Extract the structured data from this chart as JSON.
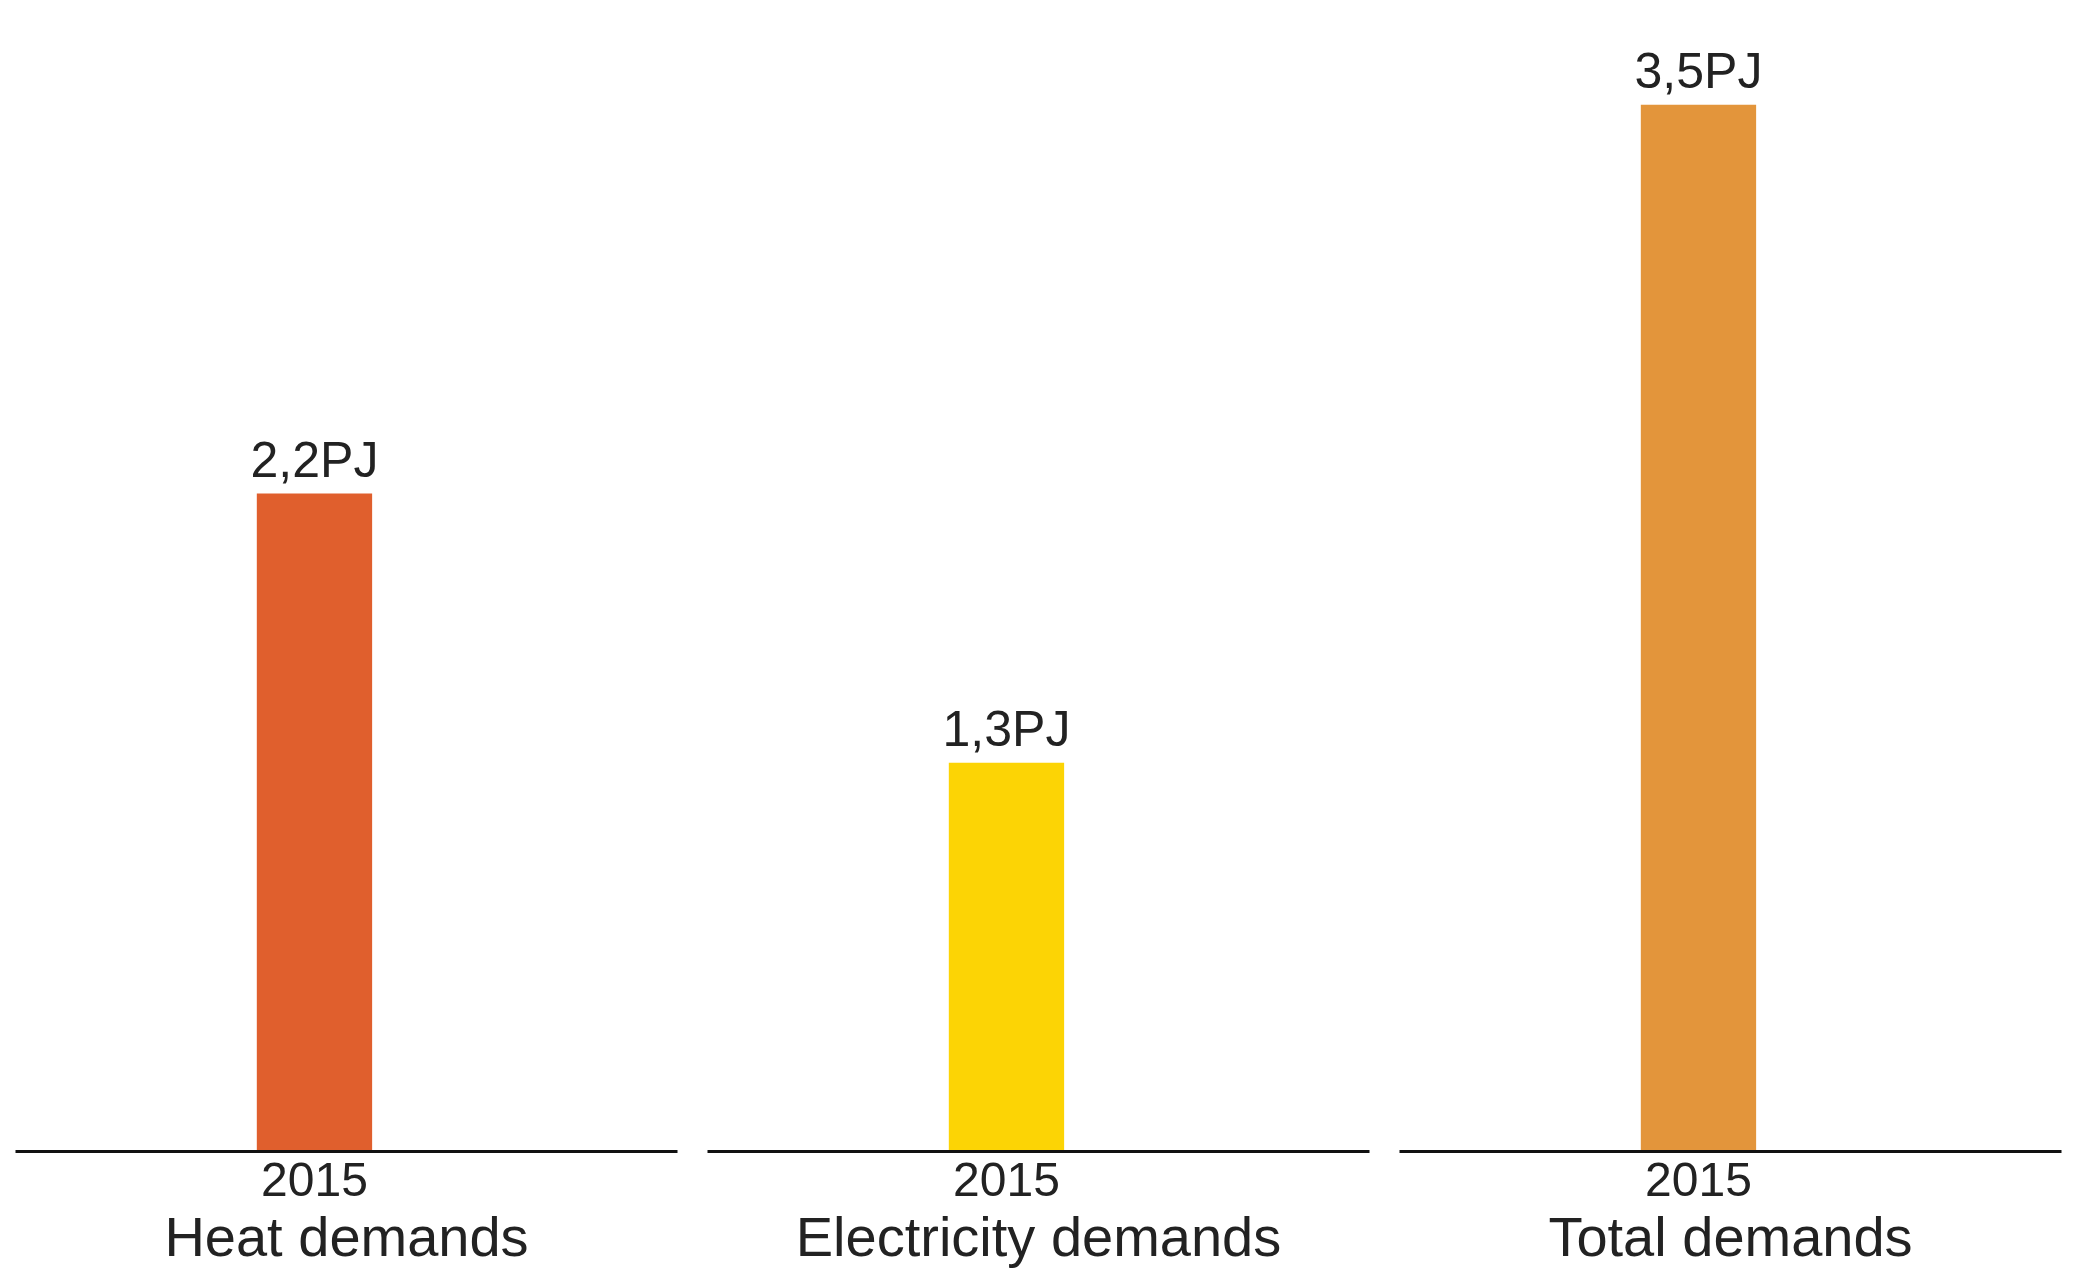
{
  "chart_data": [
    {
      "type": "bar",
      "categories": [
        "2015"
      ],
      "values": [
        2.2
      ],
      "value_labels": [
        "2,2PJ"
      ],
      "xlabel": "Heat demands",
      "color": "#e05f2d"
    },
    {
      "type": "bar",
      "categories": [
        "2015"
      ],
      "values": [
        1.3
      ],
      "value_labels": [
        "1,3PJ"
      ],
      "xlabel": "Electricity demands",
      "color": "#fcd405"
    },
    {
      "type": "bar",
      "categories": [
        "2015"
      ],
      "values": [
        3.5
      ],
      "value_labels": [
        "3,5PJ"
      ],
      "xlabel": "Total demands",
      "color": "#e3953b"
    }
  ]
}
